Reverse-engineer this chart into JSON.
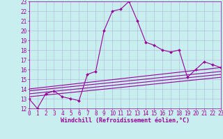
{
  "title": "",
  "xlabel": "Windchill (Refroidissement éolien,°C)",
  "ylabel": "",
  "background_color": "#c8eef0",
  "grid_color": "#b0b8d8",
  "line_color": "#990099",
  "xmin": 0,
  "xmax": 23,
  "ymin": 12,
  "ymax": 23,
  "x_ticks": [
    0,
    1,
    2,
    3,
    4,
    5,
    6,
    7,
    8,
    9,
    10,
    11,
    12,
    13,
    14,
    15,
    16,
    17,
    18,
    19,
    20,
    21,
    22,
    23
  ],
  "y_ticks": [
    12,
    13,
    14,
    15,
    16,
    17,
    18,
    19,
    20,
    21,
    22,
    23
  ],
  "main_line_x": [
    0,
    1,
    2,
    3,
    4,
    5,
    6,
    7,
    8,
    9,
    10,
    11,
    12,
    13,
    14,
    15,
    16,
    17,
    18,
    19,
    20,
    21,
    22,
    23
  ],
  "main_line_y": [
    13.0,
    12.0,
    13.5,
    13.8,
    13.2,
    13.0,
    12.8,
    15.5,
    15.8,
    20.0,
    22.0,
    22.2,
    23.0,
    21.0,
    18.8,
    18.5,
    18.0,
    17.8,
    18.0,
    15.2,
    16.0,
    16.8,
    16.5,
    16.2
  ],
  "ref_lines": [
    [
      0,
      14.0,
      23,
      16.2
    ],
    [
      0,
      13.8,
      23,
      15.8
    ],
    [
      0,
      13.5,
      23,
      15.5
    ],
    [
      0,
      13.2,
      23,
      15.2
    ]
  ],
  "tick_fontsize": 5.5,
  "xlabel_fontsize": 6.0,
  "marker_size": 2.0,
  "line_width": 0.8
}
